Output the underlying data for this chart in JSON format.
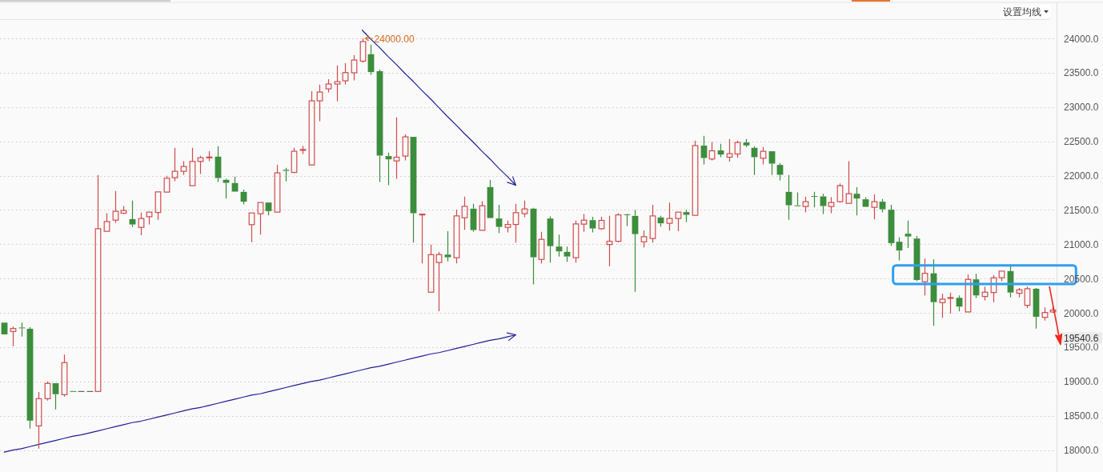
{
  "chart_data": {
    "type": "candlestick",
    "categories": [
      null,
      null,
      null,
      null,
      null,
      null,
      null,
      null,
      null,
      null,
      null,
      null,
      null,
      null,
      null,
      null,
      null,
      null,
      null,
      null,
      null,
      null,
      null,
      null,
      null,
      null,
      null,
      null,
      null,
      null,
      null,
      null,
      null,
      null,
      null,
      null,
      null,
      null,
      null,
      null,
      null,
      null,
      null,
      null,
      null,
      null,
      null,
      null,
      null,
      null,
      null,
      null,
      null,
      null,
      null,
      null,
      null,
      null,
      null,
      null,
      null,
      null,
      null,
      null,
      null,
      null,
      null,
      null,
      null,
      null,
      null,
      null,
      null,
      null,
      null,
      null,
      null,
      null,
      null,
      null,
      null,
      null,
      null,
      null,
      null,
      null,
      null,
      null,
      null,
      null,
      null,
      null,
      null,
      null,
      null,
      null,
      null,
      null,
      null,
      null,
      null,
      null,
      null,
      null,
      null,
      null,
      null,
      null,
      null,
      null,
      null,
      null,
      null,
      null,
      null,
      null,
      null,
      null,
      null,
      null,
      null,
      null,
      null,
      null
    ],
    "ohlc": [
      [
        19857,
        19857,
        19686,
        19686
      ],
      [
        19729,
        19799,
        19514,
        19771
      ],
      [
        19785,
        19857,
        19654,
        19775
      ],
      [
        19768,
        19791,
        18312,
        18429
      ],
      [
        18352,
        18846,
        18021,
        18749
      ],
      [
        18749,
        19001,
        18721,
        18971
      ],
      [
        18974,
        18974,
        18592,
        18814
      ],
      [
        18807,
        19391,
        18779,
        19274
      ],
      [
        18854,
        18854,
        18854,
        18854
      ],
      [
        18854,
        18854,
        18854,
        18854
      ],
      [
        18854,
        18854,
        18854,
        18854
      ],
      [
        18854,
        22008,
        18854,
        21226
      ],
      [
        21188,
        21452,
        21188,
        21331
      ],
      [
        21351,
        21775,
        21312,
        21480
      ],
      [
        21452,
        21557,
        21440,
        21491
      ],
      [
        21366,
        21635,
        21250,
        21288
      ],
      [
        21246,
        21460,
        21133,
        21375
      ],
      [
        21401,
        21468,
        21288,
        21468
      ],
      [
        21463,
        21763,
        21355,
        21763
      ],
      [
        21760,
        21997,
        21760,
        21962
      ],
      [
        21970,
        22405,
        21918,
        22063
      ],
      [
        22063,
        22210,
        22008,
        22133
      ],
      [
        21853,
        22405,
        21853,
        22207
      ],
      [
        22207,
        22288,
        22023,
        22261
      ],
      [
        22262,
        22355,
        22210,
        22269
      ],
      [
        22277,
        22428,
        21907,
        21965
      ],
      [
        21938,
        21958,
        21666,
        21895
      ],
      [
        21892,
        21985,
        21767,
        21767
      ],
      [
        21763,
        21795,
        21580,
        21620
      ],
      [
        21285,
        21456,
        21031,
        21456
      ],
      [
        21445,
        21610,
        21141,
        21608
      ],
      [
        21608,
        21608,
        21421,
        21483
      ],
      [
        21468,
        22160,
        21468,
        22040
      ],
      [
        22085,
        22113,
        21918,
        22070
      ],
      [
        22047,
        22405,
        22035,
        22355
      ],
      [
        22372,
        22432,
        22315,
        22378
      ],
      [
        22156,
        23230,
        22156,
        23090
      ],
      [
        23090,
        23327,
        22794,
        23218
      ],
      [
        23265,
        23405,
        23214,
        23335
      ],
      [
        23335,
        23607,
        23085,
        23370
      ],
      [
        23382,
        23639,
        23330,
        23502
      ],
      [
        23499,
        23755,
        23389,
        23685
      ],
      [
        23669,
        24000,
        23646,
        23954
      ],
      [
        23770,
        23910,
        23471,
        23510
      ],
      [
        23522,
        23545,
        21907,
        22292
      ],
      [
        22285,
        22335,
        21860,
        22238
      ],
      [
        22215,
        22852,
        21953,
        22269
      ],
      [
        22285,
        22600,
        22222,
        22565
      ],
      [
        22565,
        22565,
        21024,
        21452
      ],
      [
        21430,
        21445,
        20721,
        21436
      ],
      [
        20301,
        20996,
        20301,
        20849
      ],
      [
        20733,
        20888,
        20024,
        20849
      ],
      [
        20849,
        21191,
        20751,
        20810
      ],
      [
        20803,
        21506,
        20721,
        21413
      ],
      [
        21386,
        21693,
        21211,
        21553
      ],
      [
        21518,
        21588,
        21180,
        21207
      ],
      [
        21203,
        21627,
        21203,
        21561
      ],
      [
        21833,
        21938,
        21382,
        21382
      ],
      [
        21375,
        21576,
        21160,
        21253
      ],
      [
        21246,
        21343,
        21172,
        21288
      ],
      [
        21288,
        21588,
        21024,
        21460
      ],
      [
        21445,
        21635,
        21393,
        21515
      ],
      [
        21518,
        21530,
        20413,
        20810
      ],
      [
        20779,
        21180,
        20721,
        21071
      ],
      [
        21375,
        21405,
        20733,
        20973
      ],
      [
        20966,
        21141,
        20821,
        20896
      ],
      [
        20888,
        20966,
        20744,
        20821
      ],
      [
        20803,
        21343,
        20733,
        21296
      ],
      [
        21293,
        21440,
        21180,
        21351
      ],
      [
        21351,
        21401,
        21172,
        21230
      ],
      [
        21226,
        21401,
        21211,
        21347
      ],
      [
        20996,
        21413,
        20681,
        21043
      ],
      [
        21043,
        21452,
        21031,
        21428
      ],
      [
        21435,
        21440,
        21265,
        21425
      ],
      [
        21413,
        21498,
        20308,
        21148
      ],
      [
        21036,
        21200,
        20954,
        21110
      ],
      [
        21083,
        21576,
        21024,
        21413
      ],
      [
        21390,
        21413,
        21258,
        21305
      ],
      [
        21305,
        21608,
        21200,
        21375
      ],
      [
        21375,
        21468,
        21191,
        21468
      ],
      [
        21468,
        21503,
        21323,
        21428
      ],
      [
        21421,
        22510,
        21421,
        22437
      ],
      [
        22437,
        22580,
        22163,
        22257
      ],
      [
        22242,
        22490,
        22222,
        22362
      ],
      [
        22367,
        22463,
        22269,
        22308
      ],
      [
        22269,
        22533,
        22203,
        22320
      ],
      [
        22315,
        22510,
        22261,
        22483
      ],
      [
        22483,
        22533,
        22413,
        22440
      ],
      [
        22405,
        22428,
        22008,
        22269
      ],
      [
        22253,
        22417,
        22163,
        22355
      ],
      [
        22355,
        22355,
        22008,
        22175
      ],
      [
        22156,
        22180,
        21930,
        22012
      ],
      [
        21763,
        22008,
        21355,
        21568
      ],
      [
        21563,
        21755,
        21555,
        21558
      ],
      [
        21550,
        21693,
        21463,
        21620
      ],
      [
        21700,
        21763,
        21538,
        21692
      ],
      [
        21697,
        21736,
        21440,
        21557
      ],
      [
        21550,
        21685,
        21452,
        21608
      ],
      [
        21620,
        21888,
        21608,
        21853
      ],
      [
        21596,
        22210,
        21596,
        21736
      ],
      [
        21736,
        21830,
        21421,
        21666
      ],
      [
        21655,
        21685,
        21545,
        21545
      ],
      [
        21538,
        21725,
        21363,
        21620
      ],
      [
        21620,
        21658,
        21463,
        21510
      ],
      [
        21503,
        21576,
        20978,
        21016
      ],
      [
        21036,
        21102,
        20763,
        20908
      ],
      [
        21153,
        21343,
        20946,
        21113
      ],
      [
        21083,
        21121,
        20460,
        20479
      ],
      [
        20453,
        20791,
        20254,
        20576
      ],
      [
        20576,
        20779,
        19811,
        20156
      ],
      [
        20149,
        20278,
        19928,
        20199
      ],
      [
        20214,
        20296,
        19993,
        20219
      ],
      [
        20219,
        20254,
        20021,
        20091
      ],
      [
        20013,
        20558,
        20013,
        20488
      ],
      [
        20488,
        20569,
        20215,
        20254
      ],
      [
        20238,
        20383,
        20180,
        20301
      ],
      [
        20296,
        20550,
        20156,
        20511
      ],
      [
        20511,
        20608,
        20460,
        20608
      ],
      [
        20608,
        20713,
        20226,
        20296
      ],
      [
        20286,
        20363,
        20226,
        20336
      ],
      [
        20110,
        20383,
        20071,
        20351
      ],
      [
        20351,
        20363,
        19771,
        19943
      ],
      [
        19934,
        20079,
        19888,
        20004
      ],
      [
        20013,
        20091,
        20004,
        20040
      ]
    ],
    "colors": [
      "#3c8d3c",
      "#d14b4b",
      "#3c8d3c",
      "#3c8d3c",
      "#d14b4b",
      "#d14b4b",
      "#3c8d3c",
      "#d14b4b",
      "#3c8d3c",
      "#444444",
      "#444444",
      "#d14b4b",
      "#d14b4b",
      "#d14b4b",
      "#d14b4b",
      "#3c8d3c",
      "#d14b4b",
      "#d14b4b",
      "#d14b4b",
      "#d14b4b",
      "#d14b4b",
      "#d14b4b",
      "#d14b4b",
      "#d14b4b",
      "#d14b4b",
      "#3c8d3c",
      "#3c8d3c",
      "#3c8d3c",
      "#3c8d3c",
      "#d14b4b",
      "#d14b4b",
      "#3c8d3c",
      "#d14b4b",
      "#3c8d3c",
      "#d14b4b",
      "#d14b4b",
      "#d14b4b",
      "#d14b4b",
      "#d14b4b",
      "#d14b4b",
      "#d14b4b",
      "#d14b4b",
      "#d14b4b",
      "#3c8d3c",
      "#3c8d3c",
      "#3c8d3c",
      "#d14b4b",
      "#d14b4b",
      "#3c8d3c",
      "#d14b4b",
      "#d14b4b",
      "#d14b4b",
      "#3c8d3c",
      "#d14b4b",
      "#d14b4b",
      "#3c8d3c",
      "#d14b4b",
      "#3c8d3c",
      "#3c8d3c",
      "#d14b4b",
      "#d14b4b",
      "#d14b4b",
      "#3c8d3c",
      "#d14b4b",
      "#3c8d3c",
      "#3c8d3c",
      "#3c8d3c",
      "#d14b4b",
      "#d14b4b",
      "#3c8d3c",
      "#d14b4b",
      "#d14b4b",
      "#d14b4b",
      "#3c8d3c",
      "#3c8d3c",
      "#d14b4b",
      "#d14b4b",
      "#3c8d3c",
      "#d14b4b",
      "#d14b4b",
      "#3c8d3c",
      "#d14b4b",
      "#3c8d3c",
      "#d14b4b",
      "#3c8d3c",
      "#d14b4b",
      "#d14b4b",
      "#3c8d3c",
      "#3c8d3c",
      "#d14b4b",
      "#3c8d3c",
      "#3c8d3c",
      "#3c8d3c",
      "#3c8d3c",
      "#d14b4b",
      "#3c8d3c",
      "#3c8d3c",
      "#d14b4b",
      "#d14b4b",
      "#d14b4b",
      "#3c8d3c",
      "#3c8d3c",
      "#d14b4b",
      "#3c8d3c",
      "#3c8d3c",
      "#3c8d3c",
      "#3c8d3c",
      "#3c8d3c",
      "#d14b4b",
      "#3c8d3c",
      "#d14b4b",
      "#d14b4b",
      "#3c8d3c",
      "#d14b4b",
      "#3c8d3c",
      "#d14b4b",
      "#d14b4b",
      "#d14b4b",
      "#3c8d3c",
      "#d14b4b",
      "#d14b4b",
      "#3c8d3c",
      "#d14b4b",
      "#d14b4b"
    ],
    "series": [
      {
        "type": "line",
        "color": "#1f1f99",
        "values": [
          null,
          null,
          null,
          null,
          null,
          null,
          null,
          null,
          null,
          null,
          null,
          null,
          null,
          null,
          null,
          null,
          null,
          null,
          null,
          null,
          null,
          null,
          null,
          null,
          null,
          null,
          null,
          null,
          null,
          null,
          null,
          null,
          null,
          null,
          null,
          null,
          null,
          null,
          null,
          null,
          null,
          null,
          24120,
          23990,
          23870,
          23740,
          23620,
          23490,
          23370,
          23240,
          23120,
          22990,
          22860,
          22740,
          22610,
          22490,
          22360,
          22240,
          22110,
          21990,
          21860,
          null,
          null,
          null,
          null,
          null,
          null,
          null,
          null,
          null,
          null,
          null,
          null,
          null,
          null,
          null,
          null,
          null,
          null,
          null,
          null,
          null,
          null,
          null,
          null,
          null,
          null,
          null,
          null,
          null,
          null,
          null,
          null,
          null,
          null,
          null,
          null,
          null,
          null,
          null,
          null,
          null,
          null,
          null,
          null,
          null,
          null,
          null,
          null,
          null,
          null,
          null,
          null,
          null,
          null,
          null,
          null,
          null,
          null,
          null,
          null,
          null,
          null,
          null
        ]
      },
      {
        "type": "line",
        "color": "#1f1f99",
        "values": [
          17970,
          18000,
          18020,
          18050,
          18080,
          18110,
          18140,
          18170,
          18200,
          18220,
          18250,
          18280,
          18310,
          18340,
          18370,
          18400,
          18420,
          18450,
          18480,
          18510,
          18540,
          18570,
          18600,
          18620,
          18650,
          18680,
          18710,
          18740,
          18770,
          18800,
          18820,
          18850,
          18880,
          18910,
          18940,
          18970,
          19000,
          19020,
          19050,
          19080,
          19110,
          19140,
          19170,
          19200,
          19220,
          19250,
          19280,
          19310,
          19340,
          19370,
          19400,
          19420,
          19450,
          19480,
          19510,
          19540,
          19570,
          19600,
          19620,
          19650,
          19680,
          null,
          null,
          null,
          null,
          null,
          null,
          null,
          null,
          null,
          null,
          null,
          null,
          null,
          null,
          null,
          null,
          null,
          null,
          null,
          null,
          null,
          null,
          null,
          null,
          null,
          null,
          null,
          null,
          null,
          null,
          null,
          null,
          null,
          null,
          null,
          null,
          null,
          null,
          null,
          null,
          null,
          null,
          null,
          null,
          null,
          null,
          null,
          null,
          null,
          null,
          null,
          null,
          null,
          null,
          null,
          null,
          null,
          null,
          null,
          null,
          null,
          null,
          null
        ]
      }
    ],
    "ylim": [
      17680,
      24280
    ],
    "yticks": [
      {
        "value": 18000,
        "label": "18000.0"
      },
      {
        "value": 18500,
        "label": "18500.0"
      },
      {
        "value": 19000,
        "label": "19000.0"
      },
      {
        "value": 19500,
        "label": "19500.0"
      },
      {
        "value": 20000,
        "label": "20000.0"
      },
      {
        "value": 20500,
        "label": "20500.0"
      },
      {
        "value": 21000,
        "label": "21000.0"
      },
      {
        "value": 21500,
        "label": "21500.0"
      },
      {
        "value": 22000,
        "label": "22000.0"
      },
      {
        "value": 22500,
        "label": "22500.0"
      },
      {
        "value": 23000,
        "label": "23000.0"
      },
      {
        "value": 23500,
        "label": "23500.0"
      },
      {
        "value": 24000,
        "label": "24000.0"
      }
    ],
    "grid": "y",
    "annotations": [
      "设置均线",
      "24000.00",
      "19540.6"
    ]
  }
}
